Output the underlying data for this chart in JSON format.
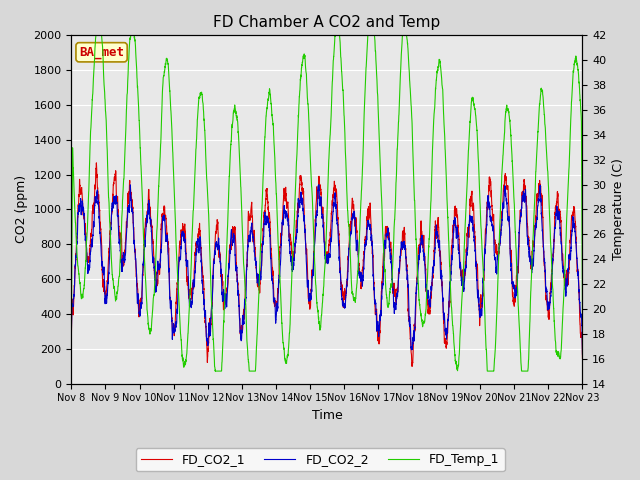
{
  "title": "FD Chamber A CO2 and Temp",
  "xlabel": "Time",
  "ylabel_left": "CO2 (ppm)",
  "ylabel_right": "Temperature (C)",
  "co2_ylim": [
    0,
    2000
  ],
  "temp_ylim": [
    14,
    42
  ],
  "co2_yticks": [
    0,
    200,
    400,
    600,
    800,
    1000,
    1200,
    1400,
    1600,
    1800,
    2000
  ],
  "temp_yticks": [
    14,
    16,
    18,
    20,
    22,
    24,
    26,
    28,
    30,
    32,
    34,
    36,
    38,
    40,
    42
  ],
  "x_tick_labels": [
    "Nov 8",
    "Nov 9",
    "Nov 10",
    "Nov 11",
    "Nov 12",
    "Nov 13",
    "Nov 14",
    "Nov 15",
    "Nov 16",
    "Nov 17",
    "Nov 18",
    "Nov 19",
    "Nov 20",
    "Nov 21",
    "Nov 22",
    "Nov 23"
  ],
  "color_co2_1": "#dd0000",
  "color_co2_2": "#0000cc",
  "color_temp": "#22cc00",
  "background_color": "#d8d8d8",
  "plot_bg_color": "#e8e8e8",
  "legend_entries": [
    "FD_CO2_1",
    "FD_CO2_2",
    "FD_Temp_1"
  ],
  "watermark_text": "BA_met",
  "linewidth": 0.8,
  "title_fontsize": 11,
  "axis_label_fontsize": 9,
  "tick_fontsize": 8,
  "legend_fontsize": 9
}
